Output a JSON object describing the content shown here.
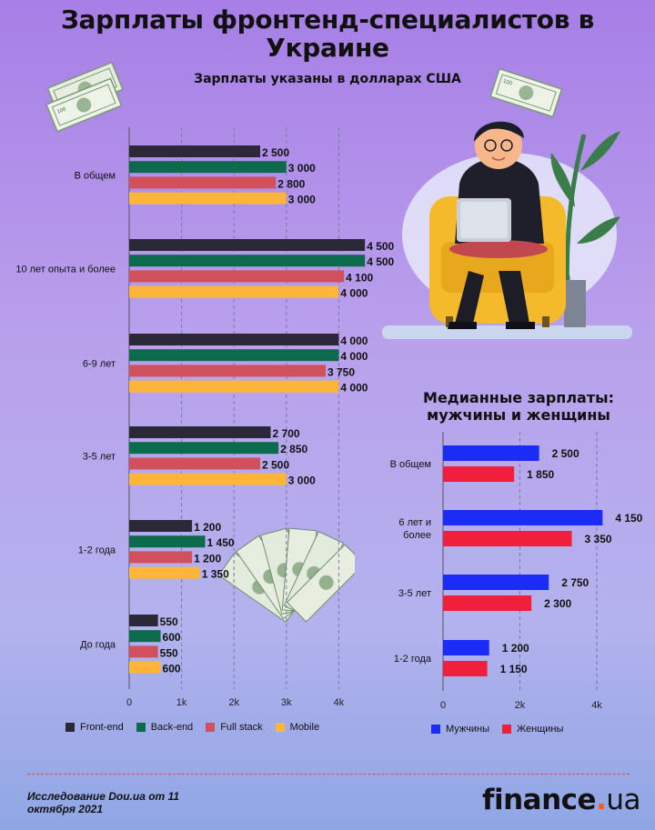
{
  "title": "Зарплаты фронтенд-специалистов в Украине",
  "subtitle": "Зарплаты указаны в долларах США",
  "chart_data": [
    {
      "type": "bar",
      "orientation": "horizontal",
      "categories": [
        "В общем",
        "10 лет опыта и более",
        "6-9 лет",
        "3-5 лет",
        "1-2 года",
        "До года"
      ],
      "series": [
        {
          "name": "Front-end",
          "color": "#2b2937",
          "values": [
            2500,
            4500,
            4000,
            2700,
            1200,
            550
          ],
          "labels": [
            "2 500",
            "4 500",
            "4 000",
            "2 700",
            "1 200",
            "550"
          ]
        },
        {
          "name": "Back-end",
          "color": "#0b6b4c",
          "values": [
            3000,
            4500,
            4000,
            2850,
            1450,
            600
          ],
          "labels": [
            "3 000",
            "4 500",
            "4 000",
            "2 850",
            "1 450",
            "600"
          ]
        },
        {
          "name": "Full stack",
          "color": "#d0505c",
          "values": [
            2800,
            4100,
            3750,
            2500,
            1200,
            550
          ],
          "labels": [
            "2 800",
            "4 100",
            "3 750",
            "2 500",
            "1 200",
            "550"
          ]
        },
        {
          "name": "Mobile",
          "color": "#ffb43a",
          "values": [
            3000,
            4000,
            4000,
            3000,
            1350,
            600
          ],
          "labels": [
            "3 000",
            "4 000",
            "4 000",
            "3 000",
            "1 350",
            "600"
          ]
        }
      ],
      "xlim": [
        0,
        4700
      ],
      "ticks": [
        0,
        1000,
        2000,
        3000,
        4000
      ],
      "tick_labels": [
        "0",
        "1k",
        "2k",
        "3k",
        "4k"
      ],
      "grid": true,
      "legend_position": "bottom"
    },
    {
      "type": "bar",
      "orientation": "horizontal",
      "title": "Медианные зарплаты: мужчины и женщины",
      "categories": [
        "В общем",
        "6 лет и более",
        "3-5 лет",
        "1-2 года"
      ],
      "series": [
        {
          "name": "Мужчины",
          "color": "#1a2cf6",
          "values": [
            2500,
            4150,
            2750,
            1200
          ],
          "labels": [
            "2 500",
            "4 150",
            "2 750",
            "1 200"
          ]
        },
        {
          "name": "Женщины",
          "color": "#f0203c",
          "values": [
            1850,
            3350,
            2300,
            1150
          ],
          "labels": [
            "1 850",
            "3 350",
            "2 300",
            "1 150"
          ]
        }
      ],
      "xlim": [
        0,
        4200
      ],
      "ticks": [
        0,
        2000,
        4000
      ],
      "tick_labels": [
        "0",
        "2k",
        "4k"
      ],
      "grid": true,
      "legend_position": "bottom"
    }
  ],
  "footer": {
    "source": "Исследование Dou.ua от 11 октября 2021",
    "logo_name": "finance",
    "logo_dot": ".",
    "logo_tld": "ua"
  }
}
